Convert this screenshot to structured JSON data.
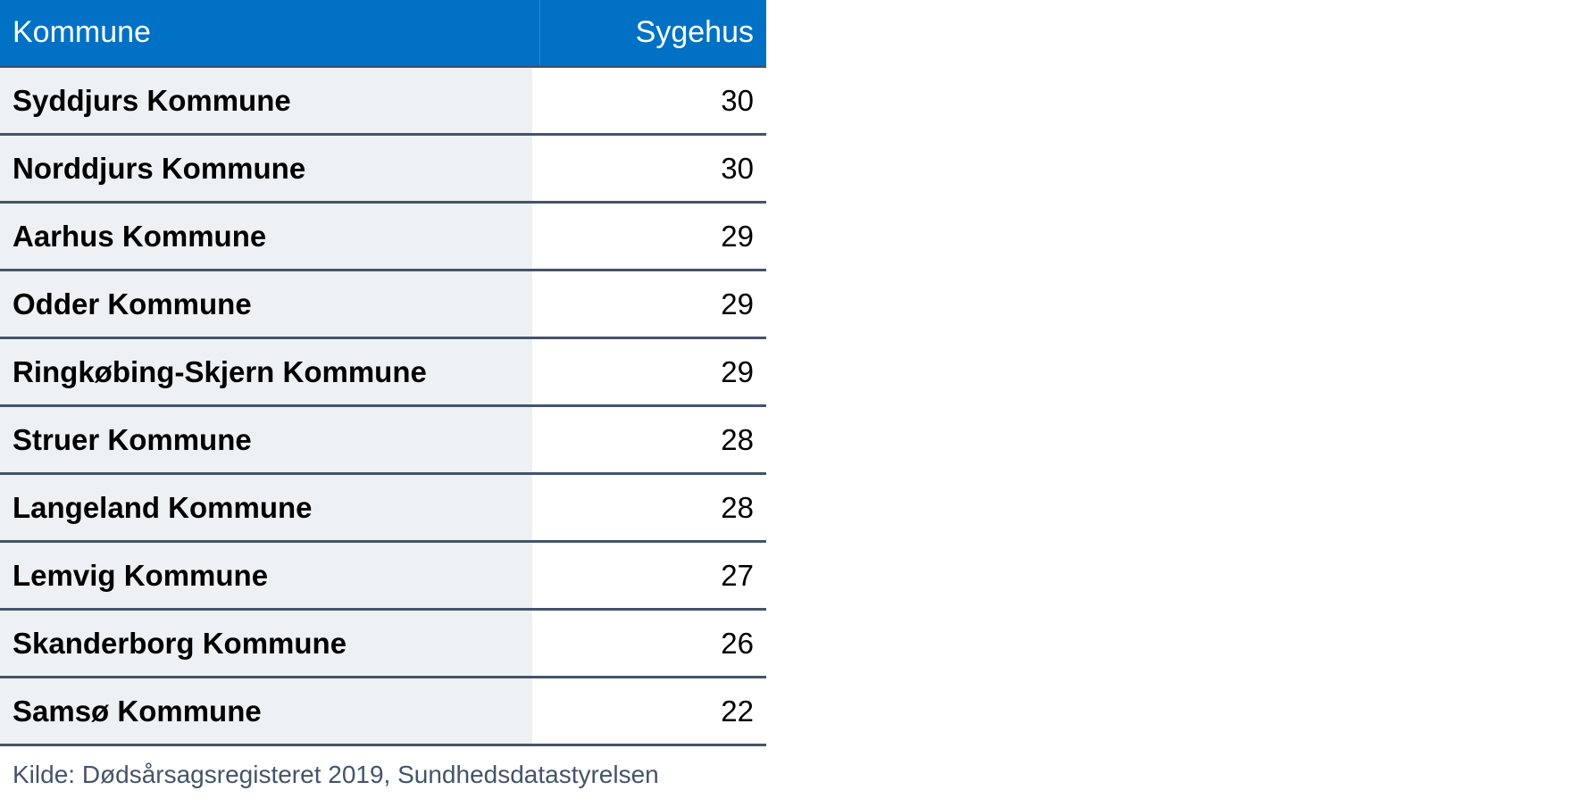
{
  "table": {
    "headers": {
      "name": "Kommune",
      "value": "Sygehus"
    },
    "rows": [
      {
        "name": "Syddjurs Kommune",
        "value": "30"
      },
      {
        "name": "Norddjurs Kommune",
        "value": "30"
      },
      {
        "name": "Aarhus Kommune",
        "value": "29"
      },
      {
        "name": "Odder Kommune",
        "value": "29"
      },
      {
        "name": "Ringkøbing-Skjern Kommune",
        "value": "29"
      },
      {
        "name": "Struer Kommune",
        "value": "28"
      },
      {
        "name": "Langeland Kommune",
        "value": "28"
      },
      {
        "name": "Lemvig Kommune",
        "value": "27"
      },
      {
        "name": "Skanderborg Kommune",
        "value": "26"
      },
      {
        "name": "Samsø Kommune",
        "value": "22"
      }
    ]
  },
  "source": "Kilde: Dødsårsagsregisteret 2019, Sundhedsdatastyrelsen",
  "colors": {
    "header_bg": "#0071c5",
    "row_label_bg": "#edf1f4",
    "rule": "#44546a"
  }
}
